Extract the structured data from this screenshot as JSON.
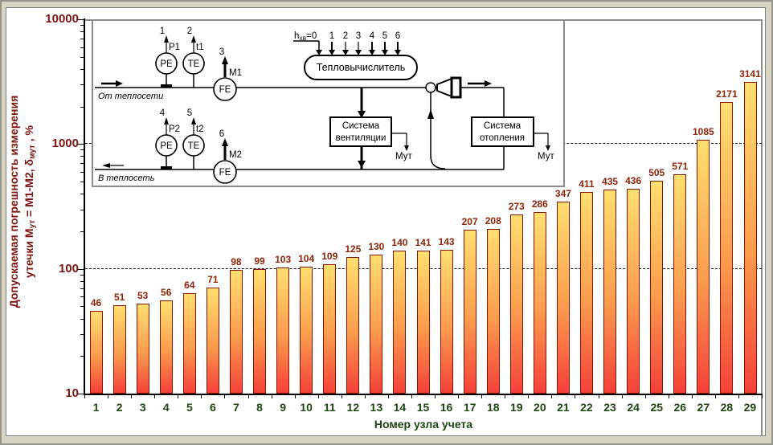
{
  "chart_data": {
    "type": "bar",
    "categories": [
      "1",
      "2",
      "3",
      "4",
      "5",
      "6",
      "7",
      "8",
      "9",
      "10",
      "11",
      "12",
      "13",
      "14",
      "15",
      "16",
      "17",
      "18",
      "19",
      "20",
      "21",
      "22",
      "23",
      "24",
      "25",
      "26",
      "27",
      "28",
      "29"
    ],
    "values": [
      46,
      51,
      53,
      56,
      64,
      71,
      98,
      99,
      103,
      104,
      109,
      125,
      130,
      140,
      141,
      143,
      207,
      208,
      273,
      286,
      347,
      411,
      435,
      436,
      505,
      571,
      1085,
      2171,
      3141
    ],
    "xlabel": "Номер узла учета",
    "ylabel_line1": "Допускаемая погрешность измерения",
    "ylabel_line2_parts": {
      "pre": "утечки М",
      "sub1": "ут",
      "mid": " = М1-М2,  δ",
      "sub2": "мут",
      "post": " , %"
    },
    "yscale": "log",
    "ylim": [
      10,
      10000
    ],
    "yticks": [
      10,
      100,
      1000,
      10000
    ],
    "grid_values": [
      100,
      1000
    ],
    "grid": "horizontal-dashed",
    "legend": "none"
  },
  "colors": {
    "background": "#d8d5c5",
    "chart_area": "#ffffff",
    "bar_top": "#ffdf70",
    "bar_mid": "#fb9b4d",
    "bar_bottom": "#f5403a",
    "bar_border": "#8b1500",
    "axis_text_red": "#801310",
    "bar_label_red": "#8f2408",
    "x_text_green": "#1d4712"
  },
  "inset": {
    "hxw": {
      "pre": "h",
      "sub": "хв",
      "post": "=0"
    },
    "inputs": [
      "1",
      "2",
      "3",
      "4",
      "5",
      "6"
    ],
    "computer": "Тепловычислитель",
    "vent_line1": "Система",
    "vent_line2": "вентиляции",
    "heat_line1": "Система",
    "heat_line2": "отопления",
    "mut_vent": "Мут",
    "mut_heat": "Мут",
    "from_net": "От теплосети",
    "to_net": "В теплосеть",
    "pe": "PE",
    "te": "TE",
    "fe": "FE",
    "p1": "P1",
    "t1": "t1",
    "m1": "M1",
    "p2": "P2",
    "t2": "t2",
    "m2": "M2",
    "n1": "1",
    "n2": "2",
    "n3": "3",
    "n4": "4",
    "n5": "5",
    "n6": "6"
  }
}
